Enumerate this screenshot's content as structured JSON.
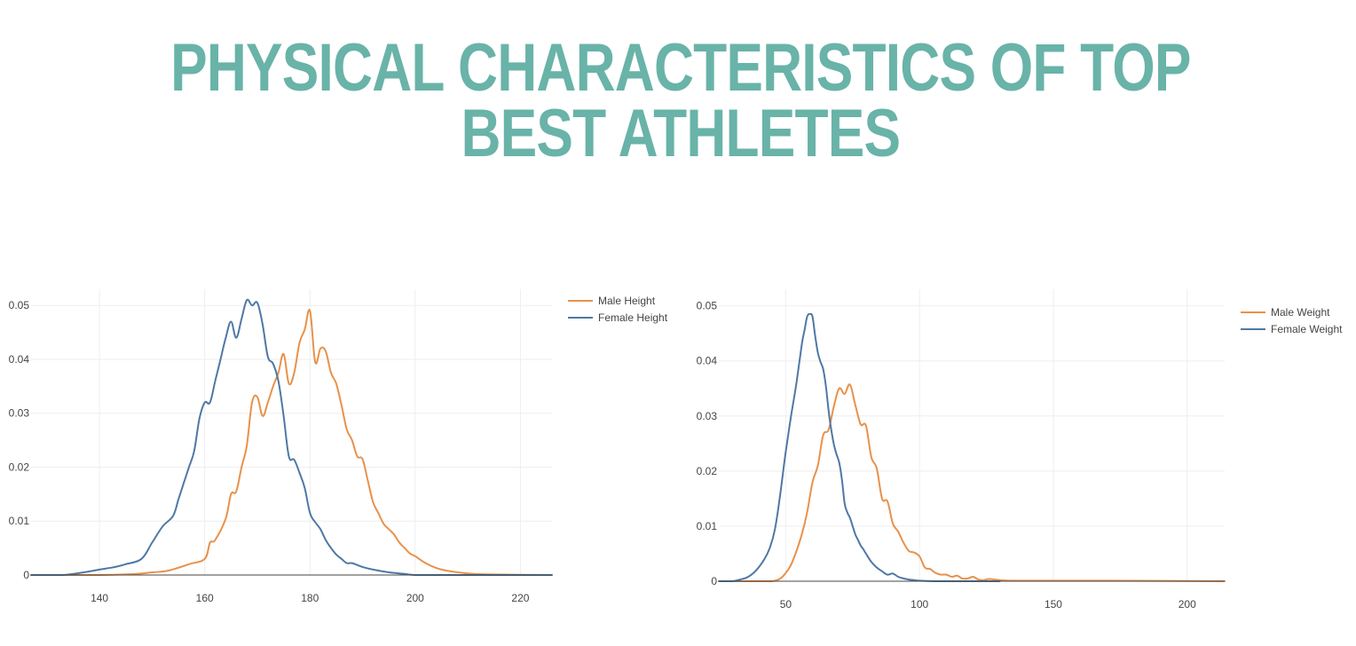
{
  "page": {
    "title": "PHYSICAL CHARACTERISTICS OF TOP BEST ATHLETES",
    "title_color": "#69b3a8"
  },
  "colors": {
    "male": "#e8914a",
    "female": "#4e78a5",
    "grid": "#eeeeee",
    "zero_line": "#444444"
  },
  "chart_data": [
    {
      "type": "line",
      "title": "",
      "xlabel": "",
      "ylabel": "",
      "xlim": [
        127,
        226
      ],
      "ylim": [
        0,
        0.053
      ],
      "xticks": [
        140,
        160,
        180,
        200,
        220
      ],
      "yticks": [
        0,
        0.01,
        0.02,
        0.03,
        0.04,
        0.05
      ],
      "ytick_labels": [
        "0",
        "0.01",
        "0.02",
        "0.03",
        "0.04",
        "0.05"
      ],
      "grid": true,
      "legend_position": "top-right",
      "series": [
        {
          "name": "Male Height",
          "color": "#e8914a",
          "x": [
            127,
            140,
            147,
            150,
            153,
            157,
            160,
            161,
            162,
            164,
            165,
            166,
            167,
            168,
            169,
            170,
            171,
            172,
            173,
            174,
            175,
            176,
            177,
            178,
            179,
            180,
            181,
            182,
            183,
            184,
            185,
            186,
            187,
            188,
            189,
            190,
            191,
            192,
            193,
            194,
            195,
            196,
            197,
            198,
            199,
            200,
            202,
            205,
            210,
            215,
            226
          ],
          "y": [
            0,
            0,
            0.0002,
            0.0005,
            0.0008,
            0.002,
            0.003,
            0.006,
            0.0065,
            0.0105,
            0.015,
            0.0155,
            0.02,
            0.024,
            0.032,
            0.033,
            0.0295,
            0.032,
            0.035,
            0.0375,
            0.041,
            0.0355,
            0.0375,
            0.043,
            0.0455,
            0.049,
            0.0395,
            0.042,
            0.0415,
            0.0375,
            0.0355,
            0.0315,
            0.027,
            0.025,
            0.022,
            0.0215,
            0.0175,
            0.0135,
            0.0115,
            0.0095,
            0.0085,
            0.0075,
            0.006,
            0.005,
            0.004,
            0.0035,
            0.0022,
            0.001,
            0.0003,
            0.0001,
            0
          ]
        },
        {
          "name": "Female Height",
          "color": "#4e78a5",
          "x": [
            127,
            133,
            137,
            140,
            143,
            145,
            148,
            150,
            152,
            154,
            155,
            156,
            157,
            158,
            159,
            160,
            161,
            162,
            163,
            164,
            165,
            166,
            167,
            168,
            169,
            170,
            171,
            172,
            173,
            174,
            175,
            176,
            177,
            178,
            179,
            180,
            181,
            182,
            183,
            184,
            185,
            186,
            187,
            188,
            190,
            192,
            195,
            198,
            200,
            205,
            226
          ],
          "y": [
            0,
            0,
            0.0005,
            0.001,
            0.0015,
            0.002,
            0.003,
            0.006,
            0.009,
            0.011,
            0.014,
            0.017,
            0.02,
            0.023,
            0.029,
            0.032,
            0.032,
            0.036,
            0.04,
            0.044,
            0.047,
            0.044,
            0.0475,
            0.051,
            0.05,
            0.0505,
            0.0465,
            0.0405,
            0.0392,
            0.036,
            0.0295,
            0.022,
            0.0214,
            0.019,
            0.0162,
            0.0115,
            0.0098,
            0.0085,
            0.0065,
            0.005,
            0.0038,
            0.003,
            0.0022,
            0.0022,
            0.0015,
            0.001,
            0.0005,
            0.0002,
            0,
            0,
            0
          ]
        }
      ]
    },
    {
      "type": "line",
      "title": "",
      "xlabel": "",
      "ylabel": "",
      "xlim": [
        25,
        214
      ],
      "ylim": [
        0,
        0.053
      ],
      "xticks": [
        50,
        100,
        150,
        200
      ],
      "yticks": [
        0,
        0.01,
        0.02,
        0.03,
        0.04,
        0.05
      ],
      "ytick_labels": [
        "0",
        "0.01",
        "0.02",
        "0.03",
        "0.04",
        "0.05"
      ],
      "grid": true,
      "legend_position": "top-right",
      "series": [
        {
          "name": "Male Weight",
          "color": "#e8914a",
          "x": [
            25,
            40,
            45,
            48,
            50,
            52,
            54,
            56,
            58,
            60,
            62,
            64,
            66,
            68,
            70,
            72,
            74,
            76,
            78,
            80,
            82,
            84,
            86,
            88,
            90,
            92,
            94,
            96,
            98,
            100,
            102,
            104,
            106,
            108,
            110,
            112,
            114,
            116,
            118,
            120,
            122,
            124,
            126,
            130,
            135,
            150,
            170,
            214
          ],
          "y": [
            0,
            0,
            0,
            0.0005,
            0.0015,
            0.003,
            0.0055,
            0.0085,
            0.0125,
            0.018,
            0.021,
            0.0265,
            0.0275,
            0.0318,
            0.035,
            0.034,
            0.0357,
            0.032,
            0.0285,
            0.0282,
            0.0225,
            0.0205,
            0.015,
            0.0145,
            0.0105,
            0.009,
            0.007,
            0.0055,
            0.0052,
            0.0045,
            0.0025,
            0.0022,
            0.0015,
            0.0012,
            0.0012,
            0.0008,
            0.001,
            0.0005,
            0.0005,
            0.0008,
            0.0003,
            0.0002,
            0.0004,
            0.0002,
            0.0001,
            0.0001,
            0.0001,
            0
          ]
        },
        {
          "name": "Female Weight",
          "color": "#4e78a5",
          "x": [
            25,
            30,
            33,
            36,
            39,
            42,
            44,
            46,
            48,
            50,
            52,
            54,
            56,
            57,
            58,
            59,
            60,
            61,
            62,
            63,
            64,
            65,
            66,
            67,
            68,
            69,
            70,
            71,
            72,
            73,
            74,
            75,
            76,
            77,
            78,
            79,
            80,
            82,
            84,
            86,
            88,
            90,
            92,
            94,
            96,
            98,
            100,
            105,
            110,
            130
          ],
          "y": [
            0,
            0,
            0.0003,
            0.0008,
            0.002,
            0.004,
            0.006,
            0.0095,
            0.016,
            0.0235,
            0.03,
            0.036,
            0.043,
            0.0455,
            0.048,
            0.0485,
            0.048,
            0.0445,
            0.0415,
            0.0398,
            0.0385,
            0.0355,
            0.031,
            0.0275,
            0.0248,
            0.023,
            0.0215,
            0.0185,
            0.0142,
            0.0125,
            0.0115,
            0.01,
            0.0085,
            0.0075,
            0.0065,
            0.0058,
            0.005,
            0.0035,
            0.0025,
            0.0018,
            0.0012,
            0.0014,
            0.0008,
            0.0005,
            0.0003,
            0.0002,
            0.0001,
            0,
            0,
            0
          ]
        }
      ]
    }
  ]
}
